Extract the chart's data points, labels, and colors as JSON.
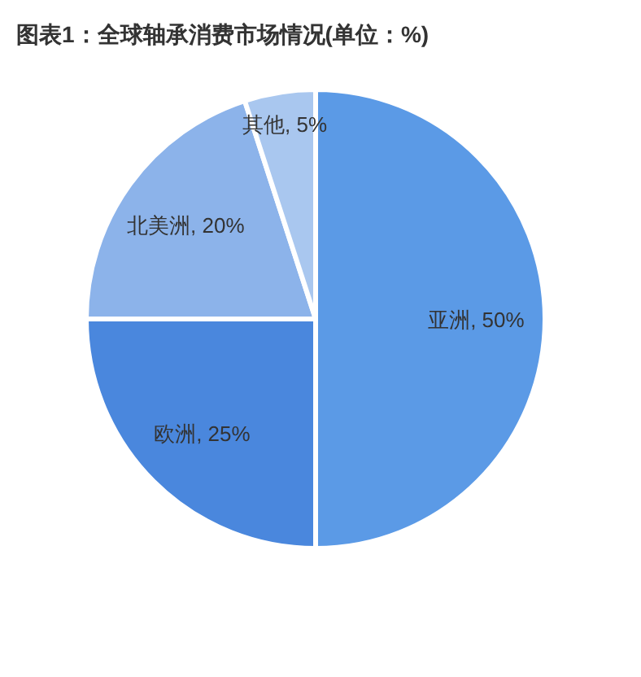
{
  "chart_data": {
    "type": "pie",
    "title": "图表1：全球轴承消费市场情况(单位：%)",
    "categories": [
      "亚洲",
      "欧洲",
      "北美洲",
      "其他"
    ],
    "values": [
      50,
      25,
      20,
      5
    ],
    "colors": [
      "#5b9ae6",
      "#4a87dd",
      "#8cb3ea",
      "#a9c7ef"
    ],
    "value_labels": [
      ", 50%",
      ", 25%",
      ", 20%",
      ", 5%"
    ]
  }
}
